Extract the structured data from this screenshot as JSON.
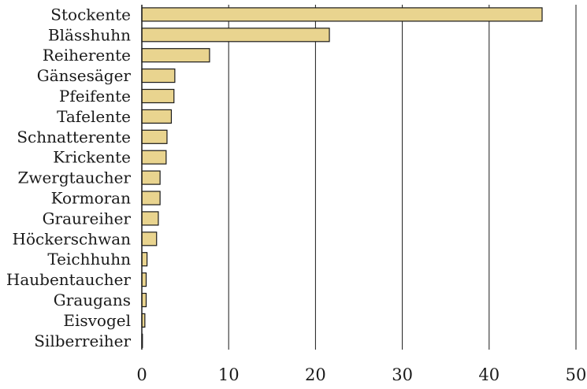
{
  "chart_data": {
    "type": "bar",
    "orientation": "horizontal",
    "title": "",
    "xlabel": "",
    "ylabel": "",
    "categories": [
      "Stockente",
      "Blässhuhn",
      "Reiherente",
      "Gänsesäger",
      "Pfeifente",
      "Tafelente",
      "Schnatterente",
      "Krickente",
      "Zwergtaucher",
      "Kormoran",
      "Graureiher",
      "Höckerschwan",
      "Teichhuhn",
      "Haubentaucher",
      "Graugans",
      "Eisvogel",
      "Silberreiher"
    ],
    "values": [
      46.1,
      21.6,
      7.8,
      3.8,
      3.7,
      3.4,
      2.9,
      2.8,
      2.1,
      2.1,
      1.9,
      1.7,
      0.6,
      0.5,
      0.5,
      0.35,
      0.05
    ],
    "xlim": [
      0,
      50
    ],
    "xticks": [
      0,
      10,
      20,
      30,
      40,
      50
    ],
    "xtick_labels": [
      "0",
      "10",
      "20",
      "30",
      "40",
      "50"
    ],
    "grid": "vertical",
    "legend": "none",
    "colors": {
      "bar_fill": "#e9d48f",
      "bar_stroke": "#1a1a1a",
      "grid": "#1a1a1a",
      "text": "#1a1a1a"
    }
  }
}
